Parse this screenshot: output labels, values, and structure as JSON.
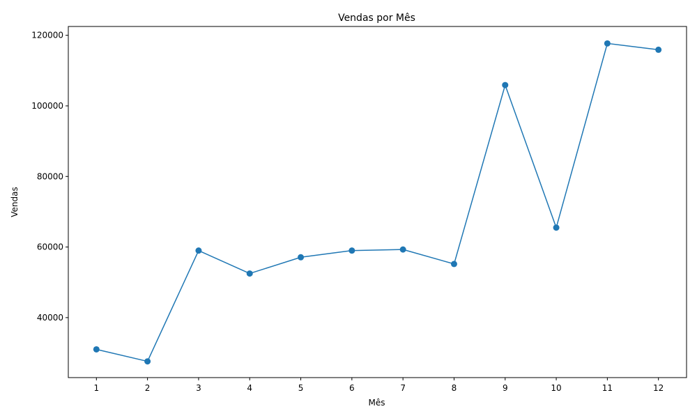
{
  "chart_data": {
    "type": "line",
    "title": "Vendas por Mês",
    "xlabel": "Mês",
    "ylabel": "Vendas",
    "x": [
      1,
      2,
      3,
      4,
      5,
      6,
      7,
      8,
      9,
      10,
      11,
      12
    ],
    "xticks": [
      "1",
      "2",
      "3",
      "4",
      "5",
      "6",
      "7",
      "8",
      "9",
      "10",
      "11",
      "12"
    ],
    "yticks": [
      40000,
      60000,
      80000,
      100000,
      120000
    ],
    "ytick_labels": [
      "40000",
      "60000",
      "80000",
      "100000",
      "120000"
    ],
    "xlim": [
      0.45,
      12.55
    ],
    "ylim": [
      23000,
      122500
    ],
    "grid": false,
    "legend": "none",
    "markers": true,
    "color": "#1f77b4",
    "series": [
      {
        "values": [
          31000,
          27600,
          59000,
          52500,
          57100,
          59000,
          59300,
          55200,
          105900,
          65500,
          117700,
          115900
        ]
      }
    ]
  }
}
